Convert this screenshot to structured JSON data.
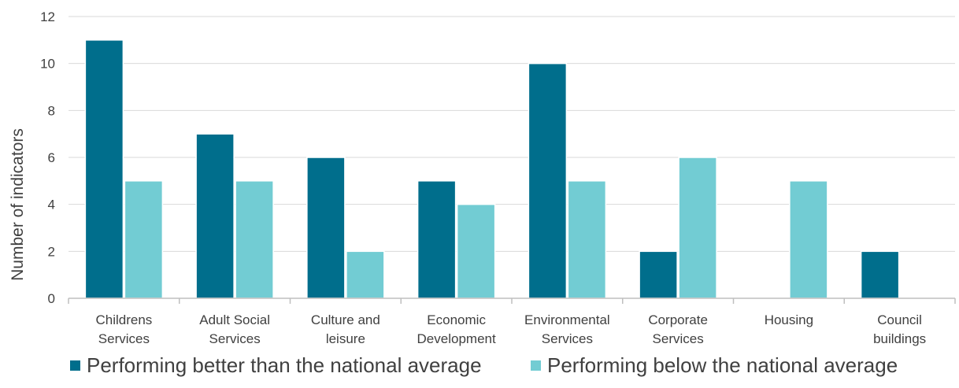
{
  "chart_data": {
    "type": "bar",
    "title": "",
    "xlabel": "",
    "ylabel": "Number of indicators",
    "ylim": [
      0,
      12
    ],
    "yticks": [
      0,
      2,
      4,
      6,
      8,
      10,
      12
    ],
    "grid": true,
    "legend_position": "bottom",
    "categories": [
      [
        "Childrens",
        "Services"
      ],
      [
        "Adult Social",
        "Services"
      ],
      [
        "Culture and",
        "leisure"
      ],
      [
        "Economic",
        "Development"
      ],
      [
        "Environmental",
        "Services"
      ],
      [
        "Corporate",
        "Services"
      ],
      [
        "Housing"
      ],
      [
        "Council",
        "buildings"
      ]
    ],
    "series": [
      {
        "name": "Performing better than the national average",
        "color": "#006e8c",
        "values": [
          11,
          7,
          6,
          5,
          10,
          2,
          0,
          2
        ]
      },
      {
        "name": "Performing below the national average",
        "color": "#72ccd3",
        "values": [
          5,
          5,
          2,
          4,
          5,
          6,
          5,
          0
        ]
      }
    ]
  }
}
